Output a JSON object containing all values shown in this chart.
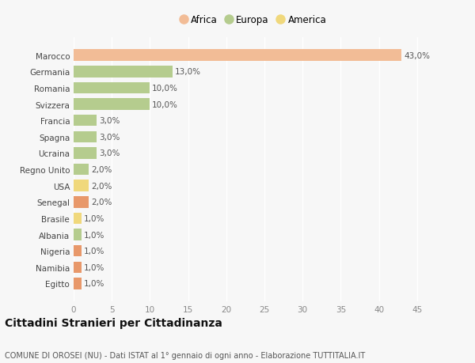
{
  "categories": [
    "Marocco",
    "Germania",
    "Romania",
    "Svizzera",
    "Francia",
    "Spagna",
    "Ucraina",
    "Regno Unito",
    "USA",
    "Senegal",
    "Brasile",
    "Albania",
    "Nigeria",
    "Namibia",
    "Egitto"
  ],
  "values": [
    43.0,
    13.0,
    10.0,
    10.0,
    3.0,
    3.0,
    3.0,
    2.0,
    2.0,
    2.0,
    1.0,
    1.0,
    1.0,
    1.0,
    1.0
  ],
  "colors": [
    "#f2bc96",
    "#b5cc8e",
    "#b5cc8e",
    "#b5cc8e",
    "#b5cc8e",
    "#b5cc8e",
    "#b5cc8e",
    "#b5cc8e",
    "#f0d87c",
    "#e8986a",
    "#f0d87c",
    "#b5cc8e",
    "#e8986a",
    "#e8986a",
    "#e8986a"
  ],
  "labels": [
    "43,0%",
    "13,0%",
    "10,0%",
    "10,0%",
    "3,0%",
    "3,0%",
    "3,0%",
    "2,0%",
    "2,0%",
    "2,0%",
    "1,0%",
    "1,0%",
    "1,0%",
    "1,0%",
    "1,0%"
  ],
  "legend": [
    {
      "label": "Africa",
      "color": "#f2bc96"
    },
    {
      "label": "Europa",
      "color": "#b5cc8e"
    },
    {
      "label": "America",
      "color": "#f0d87c"
    }
  ],
  "title": "Cittadini Stranieri per Cittadinanza",
  "subtitle": "COMUNE DI OROSEI (NU) - Dati ISTAT al 1° gennaio di ogni anno - Elaborazione TUTTITALIA.IT",
  "xlim": [
    0,
    47
  ],
  "xticks": [
    0,
    5,
    10,
    15,
    20,
    25,
    30,
    35,
    40,
    45
  ],
  "bg_color": "#f7f7f7",
  "bar_height": 0.7,
  "label_fontsize": 7.5,
  "tick_fontsize": 7.5,
  "title_fontsize": 10,
  "subtitle_fontsize": 7
}
